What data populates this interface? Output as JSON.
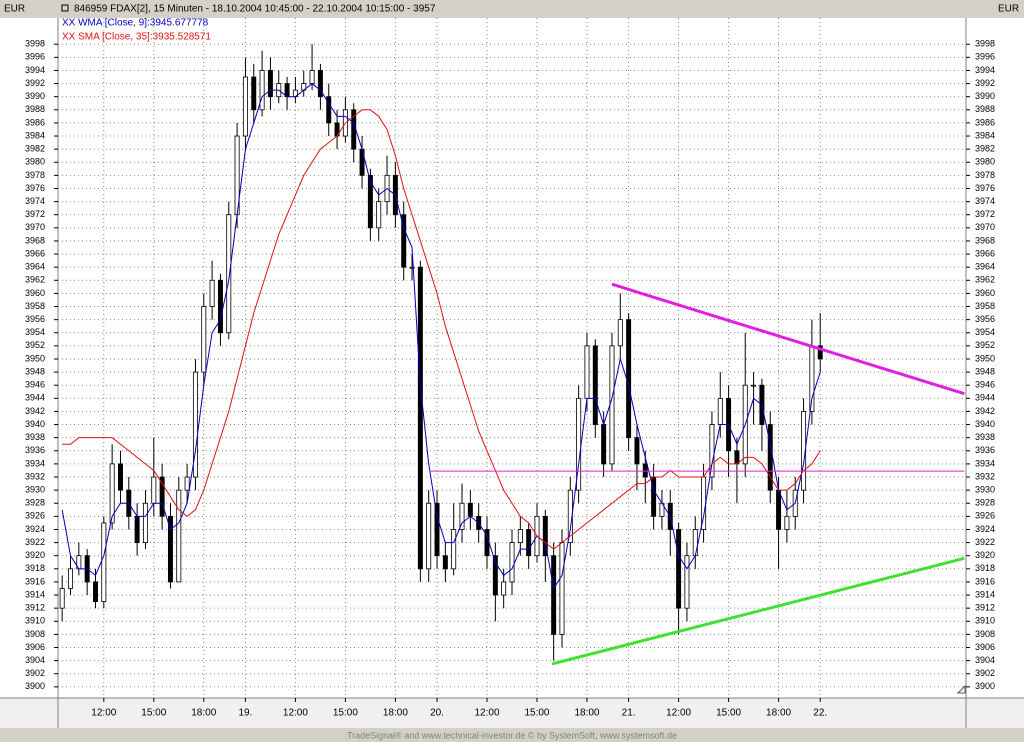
{
  "chart_data": {
    "type": "candlestick",
    "title": "846959  FDAX[2], 15 Minuten - 18.10.2004 10:45:00 - 22.10.2004 10:15:00 - 3957",
    "currency_left": "EUR",
    "currency_right": "EUR",
    "footer": "TradeSignal® and www.technical-investor.de © by  SystemSoft, www.systemsoft.de",
    "xlim": [
      -0.5,
      108.5
    ],
    "xticks": [
      {
        "value": 5,
        "label": "12:00"
      },
      {
        "value": 11,
        "label": "15:00"
      },
      {
        "value": 17,
        "label": "18:00"
      },
      {
        "value": 22,
        "label": "19."
      },
      {
        "value": 28,
        "label": "12:00"
      },
      {
        "value": 34,
        "label": "15:00"
      },
      {
        "value": 40,
        "label": "18:00"
      },
      {
        "value": 45,
        "label": "20."
      },
      {
        "value": 51,
        "label": "12:00"
      },
      {
        "value": 57,
        "label": "15:00"
      },
      {
        "value": 63,
        "label": "18:00"
      },
      {
        "value": 68,
        "label": "21."
      },
      {
        "value": 74,
        "label": "12:00"
      },
      {
        "value": 80,
        "label": "15:00"
      },
      {
        "value": 86,
        "label": "18:00"
      },
      {
        "value": 91,
        "label": "22."
      }
    ],
    "ylim": [
      3898.3,
      4002
    ],
    "yticks": [
      3900,
      3902,
      3904,
      3906,
      3908,
      3910,
      3912,
      3914,
      3916,
      3918,
      3920,
      3922,
      3924,
      3926,
      3928,
      3930,
      3932,
      3934,
      3936,
      3938,
      3940,
      3942,
      3944,
      3946,
      3948,
      3950,
      3952,
      3954,
      3956,
      3958,
      3960,
      3962,
      3964,
      3966,
      3968,
      3970,
      3972,
      3974,
      3976,
      3978,
      3980,
      3982,
      3984,
      3986,
      3988,
      3990,
      3992,
      3994,
      3996,
      3998
    ],
    "grid": true,
    "open": [
      3912,
      3915,
      3918,
      3920,
      3916,
      3913,
      3925,
      3934,
      3930,
      3926,
      3922,
      3928,
      3932,
      3926,
      3916,
      3930,
      3932,
      3948,
      3958,
      3962,
      3954,
      3972,
      3984,
      3993,
      3988,
      3994,
      3990,
      3992,
      3990,
      3991,
      3992,
      3994,
      3990,
      3986,
      3984,
      3988,
      3982,
      3978,
      3970,
      3974,
      3978,
      3972,
      3964,
      3964,
      3918,
      3928,
      3920,
      3918,
      3924,
      3928,
      3926,
      3924,
      3920,
      3914,
      3916,
      3922,
      3924,
      3920,
      3926,
      3920,
      3908,
      3922,
      3930,
      3944,
      3952,
      3940,
      3934,
      3952,
      3956,
      3938,
      3934,
      3932,
      3926,
      3928,
      3924,
      3912,
      3920,
      3924,
      3932,
      3940,
      3944,
      3936,
      3934,
      3946,
      3946,
      3940,
      3930,
      3924,
      3926,
      3930,
      3942,
      3952
    ],
    "high": [
      3917,
      3920,
      3922,
      3921,
      3918,
      3926,
      3937,
      3936,
      3932,
      3928,
      3930,
      3938,
      3934,
      3928,
      3932,
      3934,
      3950,
      3960,
      3965,
      3963,
      3974,
      3986,
      3996,
      3995,
      3997,
      3996,
      3994,
      3993,
      3993,
      3994,
      3998,
      3995,
      3992,
      3988,
      3990,
      3989,
      3984,
      3979,
      3976,
      3981,
      3980,
      3974,
      3966,
      3965,
      3930,
      3930,
      3922,
      3928,
      3931,
      3930,
      3928,
      3926,
      3922,
      3918,
      3924,
      3926,
      3925,
      3928,
      3927,
      3922,
      3924,
      3932,
      3946,
      3954,
      3953,
      3942,
      3954,
      3960,
      3957,
      3940,
      3936,
      3934,
      3930,
      3930,
      3925,
      3922,
      3926,
      3934,
      3942,
      3948,
      3946,
      3938,
      3954,
      3948,
      3947,
      3942,
      3932,
      3930,
      3932,
      3944,
      3956,
      3957
    ],
    "low": [
      3910,
      3914,
      3917,
      3914,
      3912,
      3912,
      3924,
      3928,
      3924,
      3920,
      3921,
      3926,
      3924,
      3915,
      3916,
      3928,
      3930,
      3946,
      3956,
      3952,
      3953,
      3970,
      3982,
      3986,
      3987,
      3988,
      3989,
      3988,
      3989,
      3990,
      3991,
      3988,
      3984,
      3982,
      3983,
      3980,
      3976,
      3968,
      3968,
      3972,
      3970,
      3962,
      3962,
      3916,
      3916,
      3918,
      3916,
      3917,
      3922,
      3924,
      3922,
      3918,
      3910,
      3912,
      3914,
      3920,
      3918,
      3919,
      3916,
      3904,
      3906,
      3920,
      3928,
      3942,
      3938,
      3932,
      3933,
      3950,
      3936,
      3930,
      3928,
      3924,
      3924,
      3920,
      3908,
      3910,
      3918,
      3922,
      3930,
      3938,
      3932,
      3928,
      3932,
      3940,
      3936,
      3928,
      3918,
      3922,
      3924,
      3928,
      3940,
      3948
    ],
    "close": [
      3915,
      3918,
      3920,
      3916,
      3913,
      3925,
      3934,
      3930,
      3926,
      3922,
      3928,
      3932,
      3926,
      3916,
      3930,
      3932,
      3948,
      3958,
      3962,
      3954,
      3972,
      3984,
      3993,
      3988,
      3994,
      3990,
      3992,
      3990,
      3991,
      3992,
      3994,
      3990,
      3986,
      3984,
      3988,
      3982,
      3978,
      3970,
      3974,
      3978,
      3972,
      3964,
      3964,
      3918,
      3928,
      3920,
      3918,
      3924,
      3928,
      3926,
      3924,
      3920,
      3914,
      3916,
      3922,
      3924,
      3920,
      3926,
      3920,
      3908,
      3922,
      3930,
      3944,
      3952,
      3940,
      3934,
      3952,
      3956,
      3938,
      3934,
      3932,
      3926,
      3928,
      3924,
      3912,
      3920,
      3924,
      3932,
      3940,
      3944,
      3936,
      3934,
      3946,
      3946,
      3940,
      3930,
      3924,
      3926,
      3930,
      3942,
      3952,
      3950
    ],
    "series": [
      {
        "name": "XX WMA [Close, 9]:3945.677778",
        "color": "#0000c0",
        "values": [
          3927,
          3920,
          3918,
          3918,
          3917,
          3920,
          3926,
          3928,
          3928,
          3926,
          3926,
          3928,
          3928,
          3924,
          3925,
          3928,
          3936,
          3946,
          3954,
          3956,
          3962,
          3972,
          3982,
          3986,
          3990,
          3991,
          3991,
          3990,
          3990,
          3991,
          3992,
          3991,
          3989,
          3987,
          3987,
          3986,
          3982,
          3977,
          3975,
          3976,
          3975,
          3970,
          3967,
          3946,
          3934,
          3926,
          3922,
          3922,
          3925,
          3926,
          3925,
          3923,
          3919,
          3917,
          3918,
          3921,
          3921,
          3923,
          3922,
          3915,
          3917,
          3924,
          3934,
          3944,
          3944,
          3940,
          3944,
          3950,
          3946,
          3940,
          3935,
          3930,
          3928,
          3926,
          3920,
          3918,
          3920,
          3926,
          3934,
          3940,
          3940,
          3937,
          3940,
          3944,
          3943,
          3937,
          3930,
          3927,
          3928,
          3934,
          3944,
          3948
        ]
      },
      {
        "name": "XX SMA [Close, 35]:3935.528571",
        "color": "#e01010",
        "values": [
          3937,
          3937,
          3938,
          3938,
          3938,
          3938,
          3938,
          3937,
          3936,
          3935,
          3934,
          3933,
          3931,
          3929,
          3927,
          3926,
          3927,
          3930,
          3934,
          3938,
          3942,
          3947,
          3952,
          3957,
          3961,
          3965,
          3969,
          3972,
          3975,
          3978,
          3980,
          3982,
          3983,
          3984,
          3986,
          3987,
          3988,
          3988,
          3987,
          3985,
          3981,
          3976,
          3972,
          3968,
          3964,
          3960,
          3955,
          3951,
          3947,
          3943,
          3939,
          3936,
          3933,
          3930,
          3928,
          3926,
          3925,
          3923,
          3922,
          3921,
          3922,
          3923,
          3924,
          3925,
          3926,
          3927,
          3928,
          3929,
          3930,
          3931,
          3931,
          3932,
          3932,
          3933,
          3932,
          3932,
          3932,
          3932,
          3934,
          3935,
          3934,
          3934,
          3935,
          3935,
          3934,
          3932,
          3930,
          3930,
          3931,
          3933,
          3934,
          3936
        ]
      }
    ],
    "trendlines": [
      {
        "color": "#e020e0",
        "width": 3,
        "x": [
          66,
          108.3
        ],
        "y": [
          3961.4,
          3944.7
        ]
      },
      {
        "color": "#40e030",
        "width": 3,
        "x": [
          58.8,
          108.3
        ],
        "y": [
          3903.5,
          3919.6
        ]
      },
      {
        "color": "#e020e0",
        "width": 1,
        "x": [
          44.1,
          108.3
        ],
        "y": [
          3932.9,
          3932.9
        ]
      }
    ]
  }
}
